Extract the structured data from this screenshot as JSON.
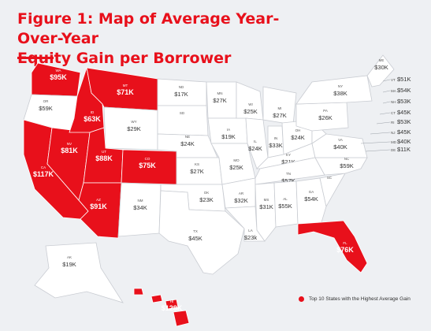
{
  "title_line1": "Figure 1: Map of Average Year-Over-Year",
  "title_line2": "Equity Gain per Borrower",
  "legend_label": "Top 10 States with the Highest Average Gain",
  "colors": {
    "highlight": "#e8101b",
    "base": "#ffffff",
    "border": "#c9ccd2",
    "background": "#eef0f3"
  },
  "states": [
    {
      "abbr": "WA",
      "value": "$95K",
      "top10": true
    },
    {
      "abbr": "OR",
      "value": "$59K",
      "top10": false
    },
    {
      "abbr": "CA",
      "value": "$117K",
      "top10": true
    },
    {
      "abbr": "NV",
      "value": "$81K",
      "top10": true
    },
    {
      "abbr": "ID",
      "value": "$63K",
      "top10": true
    },
    {
      "abbr": "MT",
      "value": "$71K",
      "top10": true
    },
    {
      "abbr": "WY",
      "value": "$29K",
      "top10": false
    },
    {
      "abbr": "UT",
      "value": "$88K",
      "top10": true
    },
    {
      "abbr": "CO",
      "value": "$75K",
      "top10": true
    },
    {
      "abbr": "AZ",
      "value": "$91K",
      "top10": true
    },
    {
      "abbr": "NM",
      "value": "$34K",
      "top10": false
    },
    {
      "abbr": "ND",
      "value": "$17K",
      "top10": false
    },
    {
      "abbr": "SD",
      "value": "",
      "top10": false
    },
    {
      "abbr": "NE",
      "value": "$24K",
      "top10": false
    },
    {
      "abbr": "KS",
      "value": "$27K",
      "top10": false
    },
    {
      "abbr": "OK",
      "value": "$23K",
      "top10": false
    },
    {
      "abbr": "TX",
      "value": "$45K",
      "top10": false
    },
    {
      "abbr": "MN",
      "value": "$27K",
      "top10": false
    },
    {
      "abbr": "IA",
      "value": "$19K",
      "top10": false
    },
    {
      "abbr": "MO",
      "value": "$25K",
      "top10": false
    },
    {
      "abbr": "AR",
      "value": "$32K",
      "top10": false
    },
    {
      "abbr": "LA",
      "value": "$23k",
      "top10": false
    },
    {
      "abbr": "WI",
      "value": "$25K",
      "top10": false
    },
    {
      "abbr": "IL",
      "value": "$24K",
      "top10": false
    },
    {
      "abbr": "MI",
      "value": "$27K",
      "top10": false
    },
    {
      "abbr": "IN",
      "value": "$33K",
      "top10": false
    },
    {
      "abbr": "OH",
      "value": "$24K",
      "top10": false
    },
    {
      "abbr": "KY",
      "value": "$21K",
      "top10": false
    },
    {
      "abbr": "TN",
      "value": "$57K",
      "top10": false
    },
    {
      "abbr": "MS",
      "value": "$31K",
      "top10": false
    },
    {
      "abbr": "AL",
      "value": "$55K",
      "top10": false
    },
    {
      "abbr": "GA",
      "value": "$54K",
      "top10": false
    },
    {
      "abbr": "FL",
      "value": "$76K",
      "top10": true
    },
    {
      "abbr": "SC",
      "value": "",
      "top10": false
    },
    {
      "abbr": "NC",
      "value": "$59K",
      "top10": false
    },
    {
      "abbr": "VA",
      "value": "$40K",
      "top10": false
    },
    {
      "abbr": "WV",
      "value": "",
      "top10": false
    },
    {
      "abbr": "PA",
      "value": "$26K",
      "top10": false
    },
    {
      "abbr": "NY",
      "value": "$38K",
      "top10": false
    },
    {
      "abbr": "ME",
      "value": "$30K",
      "top10": false
    },
    {
      "abbr": "AK",
      "value": "$19K",
      "top10": false
    },
    {
      "abbr": "HI",
      "value": "$128K",
      "top10": true
    }
  ],
  "northeast_labels": [
    {
      "abbr": "VT",
      "value": "$51K"
    },
    {
      "abbr": "MA",
      "value": "$54K"
    },
    {
      "abbr": "NH",
      "value": "$53K"
    },
    {
      "abbr": "CT",
      "value": "$45K"
    },
    {
      "abbr": "RI",
      "value": "$53K"
    },
    {
      "abbr": "NJ",
      "value": "$45K"
    },
    {
      "abbr": "MD",
      "value": "$40K"
    },
    {
      "abbr": "DE",
      "value": "$11K"
    }
  ]
}
